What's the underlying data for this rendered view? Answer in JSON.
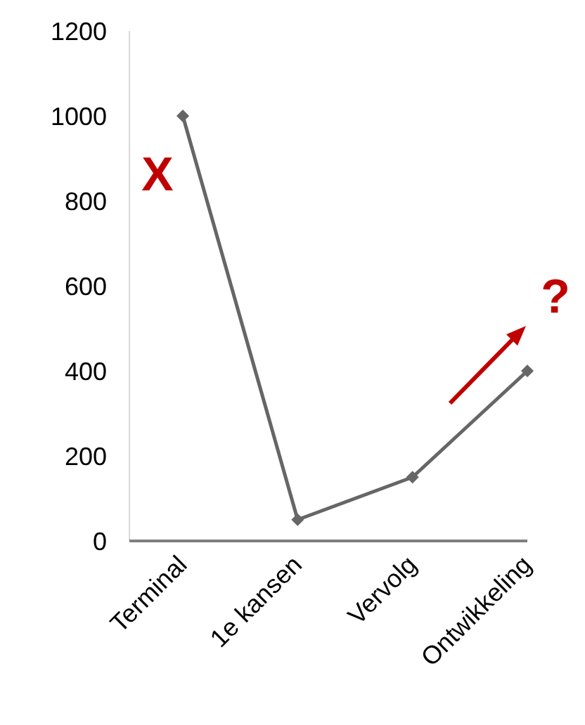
{
  "chart_data": {
    "type": "line",
    "categories": [
      "Terminal",
      "1e kansen",
      "Vervolg",
      "Ontwikkeling"
    ],
    "series": [
      {
        "color": "#666666",
        "values": [
          1000,
          50,
          150,
          400
        ]
      }
    ],
    "ylim": [
      0,
      1200
    ],
    "yticks": [
      0,
      200,
      400,
      600,
      800,
      1000,
      1200
    ],
    "grid": false,
    "marker": "diamond",
    "line_style": "solid",
    "annotations": [
      "X",
      "?"
    ]
  }
}
